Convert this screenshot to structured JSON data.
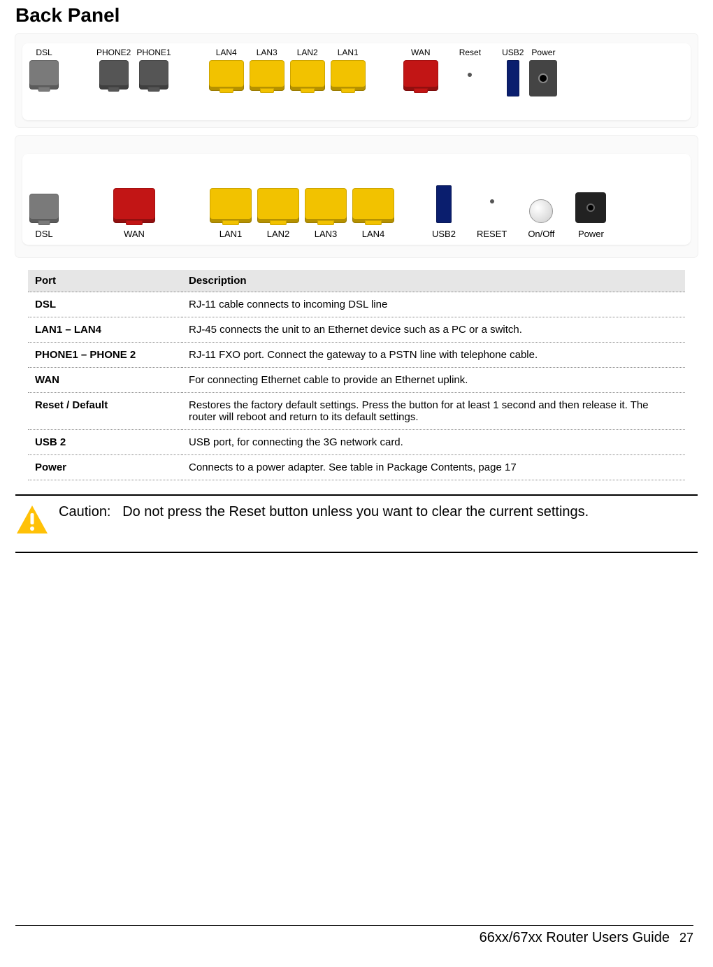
{
  "title": "Back Panel",
  "panel_top": {
    "ports": [
      {
        "key": "dsl",
        "label": "DSL",
        "shape": "jack sz-rj11",
        "color": "#7a7a7a"
      },
      {
        "key": "gap1",
        "gap": "gap-l"
      },
      {
        "key": "phone2",
        "label": "PHONE2",
        "shape": "jack sz-phone",
        "color": "#555555"
      },
      {
        "key": "phone1",
        "label": "PHONE1",
        "shape": "jack sz-phone",
        "color": "#555555"
      },
      {
        "key": "gap2",
        "gap": "gap-l"
      },
      {
        "key": "lan4",
        "label": "LAN4",
        "shape": "jack sz-rj45",
        "color": "#f2c200"
      },
      {
        "key": "lan3",
        "label": "LAN3",
        "shape": "jack sz-rj45",
        "color": "#f2c200"
      },
      {
        "key": "lan2",
        "label": "LAN2",
        "shape": "jack sz-rj45",
        "color": "#f2c200"
      },
      {
        "key": "lan1",
        "label": "LAN1",
        "shape": "jack sz-rj45",
        "color": "#f2c200"
      },
      {
        "key": "gap3",
        "gap": "gap-l"
      },
      {
        "key": "wan",
        "label": "WAN",
        "shape": "jack sz-rj45",
        "color": "#c21515"
      },
      {
        "key": "gap4",
        "gap": "gap-m"
      },
      {
        "key": "reset",
        "label": "Reset",
        "shape": "reset-dot"
      },
      {
        "key": "gap5",
        "gap": "gap-m"
      },
      {
        "key": "usb2",
        "label": "USB2",
        "shape": "usb-top"
      },
      {
        "key": "power",
        "label": "Power",
        "shape": "power-top"
      }
    ]
  },
  "panel_bottom": {
    "ports": [
      {
        "key": "dsl",
        "label": "DSL",
        "shape": "jack sz-rj11",
        "color": "#7a7a7a"
      },
      {
        "key": "gap1",
        "gap": "gap-xl"
      },
      {
        "key": "wan",
        "label": "WAN",
        "shape": "jack sz-rj45b",
        "color": "#c21515"
      },
      {
        "key": "gap2",
        "gap": "gap-xl"
      },
      {
        "key": "lan1",
        "label": "LAN1",
        "shape": "jack sz-rj45b",
        "color": "#f2c200"
      },
      {
        "key": "lan2",
        "label": "LAN2",
        "shape": "jack sz-rj45b",
        "color": "#f2c200"
      },
      {
        "key": "lan3",
        "label": "LAN3",
        "shape": "jack sz-rj45b",
        "color": "#f2c200"
      },
      {
        "key": "lan4",
        "label": "LAN4",
        "shape": "jack sz-rj45b",
        "color": "#f2c200"
      },
      {
        "key": "gap3",
        "gap": "gap-l"
      },
      {
        "key": "usb2",
        "label": "USB2",
        "shape": "usb-bot"
      },
      {
        "key": "gap4",
        "gap": "gap-m"
      },
      {
        "key": "reset",
        "label": "RESET",
        "shape": "reset-dot"
      },
      {
        "key": "gap5",
        "gap": "gap-m"
      },
      {
        "key": "onoff",
        "label": "On/Off",
        "shape": "onoff-btn"
      },
      {
        "key": "gap6",
        "gap": "gap-m"
      },
      {
        "key": "power",
        "label": "Power",
        "shape": "power-bot"
      }
    ]
  },
  "table": {
    "headers": {
      "port": "Port",
      "desc": "Description"
    },
    "rows": [
      {
        "port": "DSL",
        "desc": "RJ-11 cable connects to incoming DSL line"
      },
      {
        "port": "LAN1 – LAN4",
        "desc": "RJ-45 connects the unit to an Ethernet device such as a PC or a switch."
      },
      {
        "port": "PHONE1 – PHONE 2",
        "desc": "RJ-11 FXO port. Connect the gateway to a PSTN line with telephone cable."
      },
      {
        "port": "WAN",
        "desc": "For connecting Ethernet cable to provide an Ethernet uplink."
      },
      {
        "port": "Reset / Default",
        "desc": "Restores the factory default settings. Press the button for at least 1 second and then release it. The router will reboot and return to its default settings."
      },
      {
        "port": "USB 2",
        "desc": "USB port, for connecting the 3G network card."
      },
      {
        "port": "Power",
        "desc": "Connects to a power adapter. See table in Package Contents, page 17"
      }
    ]
  },
  "caution": {
    "label": "Caution:",
    "text": "Do not press the Reset button unless you want to clear the current settings.",
    "icon_color": "#ffc107"
  },
  "footer": {
    "title": "66xx/67xx Router Users Guide",
    "page": "27"
  }
}
